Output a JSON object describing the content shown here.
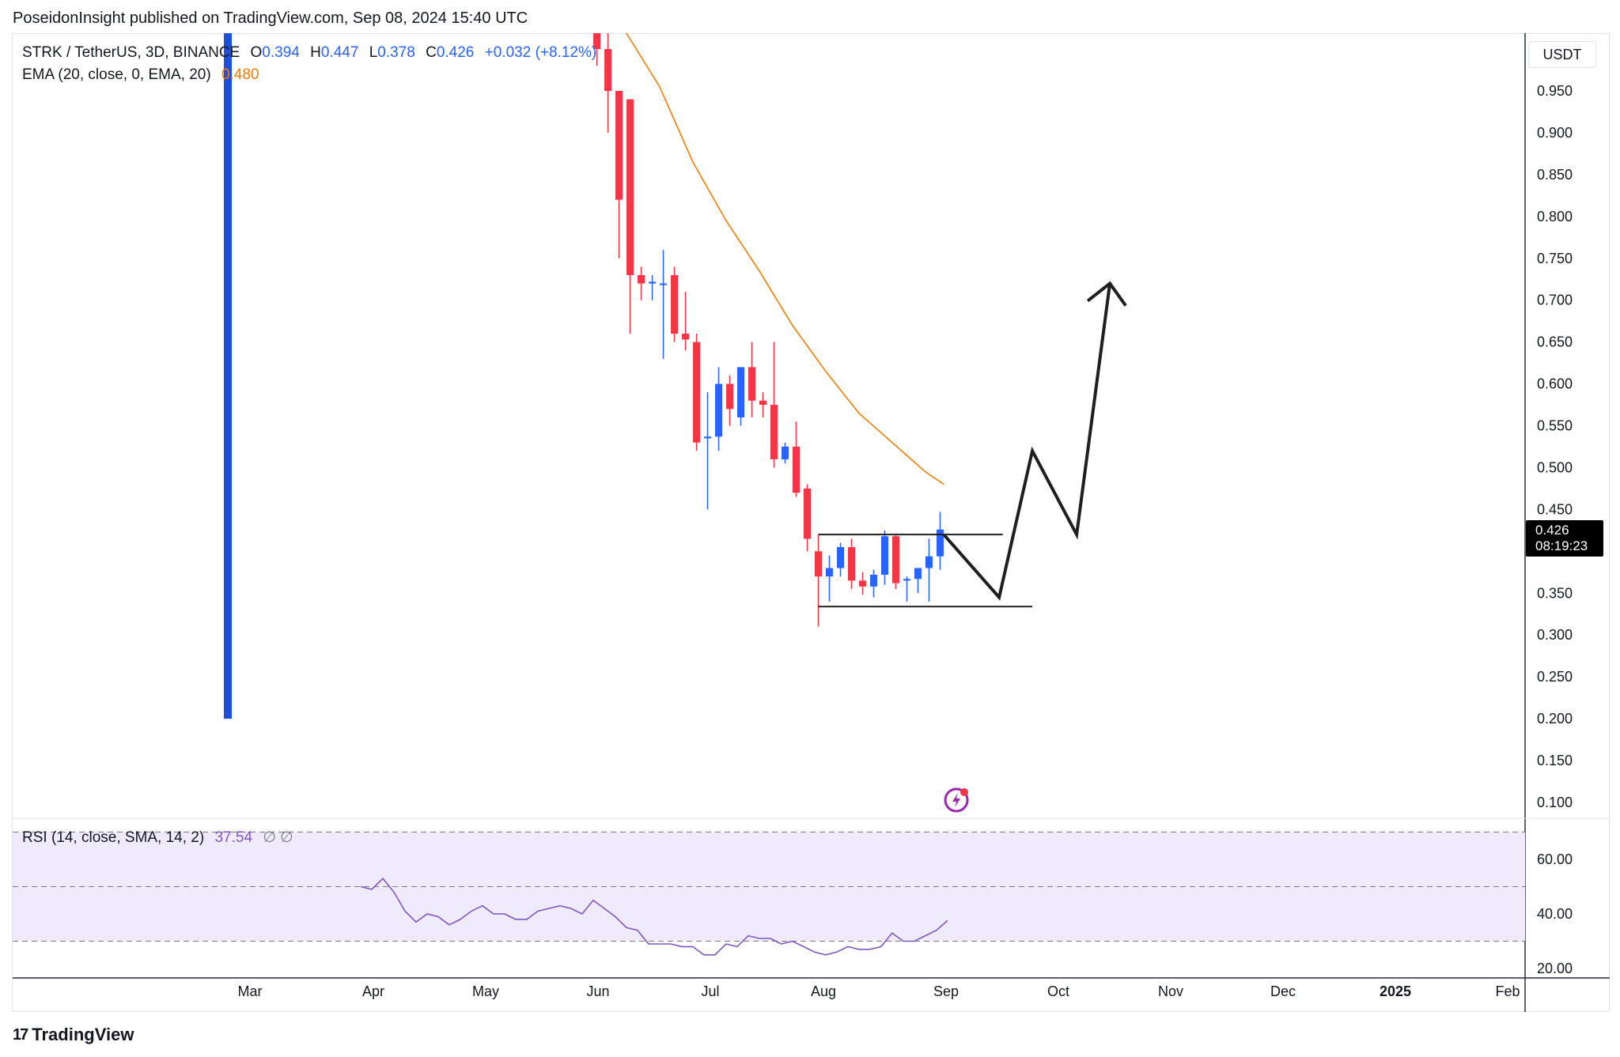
{
  "header": {
    "publisher": "PoseidonInsight published on TradingView.com, Sep 08, 2024 15:40 UTC"
  },
  "legend": {
    "symbol": "STRK / TetherUS, 3D, BINANCE",
    "o_label": "O",
    "o_value": "0.394",
    "h_label": "H",
    "h_value": "0.447",
    "l_label": "L",
    "l_value": "0.378",
    "c_label": "C",
    "c_value": "0.426",
    "change": "+0.032 (+8.12%)",
    "ema_label": "EMA (20, close, 0, EMA, 20)",
    "ema_value": "0.480",
    "rsi_label": "RSI (14, close, SMA, 14, 2)",
    "rsi_value": "37.54",
    "rsi_icons": "∅  ∅"
  },
  "axis": {
    "currency": "USDT",
    "last_price": "0.426",
    "countdown": "08:19:23"
  },
  "footer": {
    "brand": "TradingView",
    "logo_glyph": "17"
  },
  "colors": {
    "up": "#2962ff",
    "down": "#f23645",
    "ema": "#f57c00",
    "rsi": "#7e57c2",
    "rsi_band": "#f0ebfc",
    "drawing": "#1f1f1f",
    "marker": "#9c27b0"
  },
  "chart_data": [
    {
      "type": "candlestick",
      "symbol": "STRK / TetherUS",
      "interval": "3D",
      "exchange": "BINANCE",
      "y_axis": {
        "ticks": [
          0.1,
          0.15,
          0.2,
          0.25,
          0.3,
          0.35,
          0.4,
          0.45,
          0.5,
          0.55,
          0.6,
          0.65,
          0.7,
          0.75,
          0.8,
          0.85,
          0.9,
          0.95
        ],
        "ylim": [
          0.08,
          1.02
        ],
        "position": "right"
      },
      "x_axis": {
        "ticks": [
          "Mar",
          "Apr",
          "May",
          "Jun",
          "Jul",
          "Aug",
          "Sep",
          "Oct",
          "Nov",
          "Dec",
          "2025",
          "Feb"
        ]
      },
      "candles": [
        {
          "date": "2024-06-03",
          "o": 1.05,
          "h": 1.07,
          "l": 0.98,
          "c": 1.0
        },
        {
          "date": "2024-06-06",
          "o": 1.0,
          "h": 1.02,
          "l": 0.9,
          "c": 0.95
        },
        {
          "date": "2024-06-09",
          "o": 0.95,
          "h": 0.95,
          "l": 0.75,
          "c": 0.82
        },
        {
          "date": "2024-06-12",
          "o": 0.94,
          "h": 0.94,
          "l": 0.66,
          "c": 0.73
        },
        {
          "date": "2024-06-15",
          "o": 0.73,
          "h": 0.74,
          "l": 0.7,
          "c": 0.72
        },
        {
          "date": "2024-06-18",
          "o": 0.72,
          "h": 0.73,
          "l": 0.7,
          "c": 0.722
        },
        {
          "date": "2024-06-21",
          "o": 0.72,
          "h": 0.76,
          "l": 0.63,
          "c": 0.72
        },
        {
          "date": "2024-06-24",
          "o": 0.73,
          "h": 0.74,
          "l": 0.65,
          "c": 0.66
        },
        {
          "date": "2024-06-27",
          "o": 0.66,
          "h": 0.71,
          "l": 0.64,
          "c": 0.653
        },
        {
          "date": "2024-06-30",
          "o": 0.65,
          "h": 0.66,
          "l": 0.52,
          "c": 0.53
        },
        {
          "date": "2024-07-03",
          "o": 0.535,
          "h": 0.59,
          "l": 0.45,
          "c": 0.537
        },
        {
          "date": "2024-07-06",
          "o": 0.537,
          "h": 0.62,
          "l": 0.52,
          "c": 0.6
        },
        {
          "date": "2024-07-09",
          "o": 0.6,
          "h": 0.61,
          "l": 0.55,
          "c": 0.57
        },
        {
          "date": "2024-07-12",
          "o": 0.56,
          "h": 0.62,
          "l": 0.55,
          "c": 0.62
        },
        {
          "date": "2024-07-15",
          "o": 0.62,
          "h": 0.65,
          "l": 0.56,
          "c": 0.58
        },
        {
          "date": "2024-07-18",
          "o": 0.58,
          "h": 0.59,
          "l": 0.56,
          "c": 0.575
        },
        {
          "date": "2024-07-21",
          "o": 0.575,
          "h": 0.65,
          "l": 0.5,
          "c": 0.51
        },
        {
          "date": "2024-07-24",
          "o": 0.51,
          "h": 0.53,
          "l": 0.505,
          "c": 0.525
        },
        {
          "date": "2024-07-27",
          "o": 0.525,
          "h": 0.555,
          "l": 0.465,
          "c": 0.47
        },
        {
          "date": "2024-07-30",
          "o": 0.475,
          "h": 0.48,
          "l": 0.4,
          "c": 0.415
        },
        {
          "date": "2024-08-02",
          "o": 0.4,
          "h": 0.42,
          "l": 0.31,
          "c": 0.37
        },
        {
          "date": "2024-08-05",
          "o": 0.37,
          "h": 0.395,
          "l": 0.34,
          "c": 0.38
        },
        {
          "date": "2024-08-08",
          "o": 0.38,
          "h": 0.41,
          "l": 0.37,
          "c": 0.405
        },
        {
          "date": "2024-08-11",
          "o": 0.405,
          "h": 0.415,
          "l": 0.355,
          "c": 0.365
        },
        {
          "date": "2024-08-14",
          "o": 0.365,
          "h": 0.375,
          "l": 0.348,
          "c": 0.358
        },
        {
          "date": "2024-08-17",
          "o": 0.358,
          "h": 0.378,
          "l": 0.345,
          "c": 0.372
        },
        {
          "date": "2024-08-20",
          "o": 0.372,
          "h": 0.425,
          "l": 0.36,
          "c": 0.418
        },
        {
          "date": "2024-08-23",
          "o": 0.418,
          "h": 0.42,
          "l": 0.355,
          "c": 0.362
        },
        {
          "date": "2024-08-26",
          "o": 0.365,
          "h": 0.37,
          "l": 0.34,
          "c": 0.367
        },
        {
          "date": "2024-08-29",
          "o": 0.367,
          "h": 0.38,
          "l": 0.35,
          "c": 0.38
        },
        {
          "date": "2024-09-01",
          "o": 0.38,
          "h": 0.415,
          "l": 0.34,
          "c": 0.394
        },
        {
          "date": "2024-09-04",
          "o": 0.394,
          "h": 0.447,
          "l": 0.378,
          "c": 0.426
        }
      ],
      "ema": [
        {
          "date": "2024-06-11",
          "v": 1.03
        },
        {
          "date": "2024-06-20",
          "v": 0.955
        },
        {
          "date": "2024-06-29",
          "v": 0.865
        },
        {
          "date": "2024-07-08",
          "v": 0.795
        },
        {
          "date": "2024-07-17",
          "v": 0.735
        },
        {
          "date": "2024-07-26",
          "v": 0.67
        },
        {
          "date": "2024-08-04",
          "v": 0.615
        },
        {
          "date": "2024-08-13",
          "v": 0.565
        },
        {
          "date": "2024-08-22",
          "v": 0.53
        },
        {
          "date": "2024-08-31",
          "v": 0.495
        },
        {
          "date": "2024-09-05",
          "v": 0.48
        }
      ],
      "levels": [
        {
          "name": "range-top",
          "price": 0.42,
          "from": "2024-08-02",
          "to": "2024-09-21"
        },
        {
          "name": "range-bottom",
          "price": 0.334,
          "from": "2024-08-02",
          "to": "2024-09-29"
        }
      ],
      "drawing_path": [
        {
          "date": "2024-09-05",
          "price": 0.42
        },
        {
          "date": "2024-09-20",
          "price": 0.345
        },
        {
          "date": "2024-09-29",
          "price": 0.52
        },
        {
          "date": "2024-10-11",
          "price": 0.42
        },
        {
          "date": "2024-10-20",
          "price": 0.72
        }
      ],
      "arrow_head": {
        "date": "2024-10-20",
        "price": 0.72
      },
      "vertical_marker": {
        "date": "2024-02-24",
        "from": 0.2,
        "to": 1.02
      }
    },
    {
      "type": "line",
      "name": "RSI",
      "y_axis": {
        "ticks": [
          20.0,
          40.0,
          60.0
        ],
        "ylim": [
          16,
          76
        ],
        "position": "right"
      },
      "bands": {
        "upper": 70,
        "middle": 50,
        "lower": 30
      },
      "values": [
        {
          "date": "2024-03-31",
          "v": 50
        },
        {
          "date": "2024-04-03",
          "v": 49
        },
        {
          "date": "2024-04-06",
          "v": 53
        },
        {
          "date": "2024-04-09",
          "v": 48
        },
        {
          "date": "2024-04-12",
          "v": 41
        },
        {
          "date": "2024-04-15",
          "v": 37
        },
        {
          "date": "2024-04-18",
          "v": 40
        },
        {
          "date": "2024-04-21",
          "v": 39
        },
        {
          "date": "2024-04-24",
          "v": 36
        },
        {
          "date": "2024-04-27",
          "v": 38
        },
        {
          "date": "2024-04-30",
          "v": 41
        },
        {
          "date": "2024-05-03",
          "v": 43
        },
        {
          "date": "2024-05-06",
          "v": 40
        },
        {
          "date": "2024-05-09",
          "v": 40
        },
        {
          "date": "2024-05-12",
          "v": 38
        },
        {
          "date": "2024-05-15",
          "v": 38
        },
        {
          "date": "2024-05-18",
          "v": 41
        },
        {
          "date": "2024-05-21",
          "v": 42
        },
        {
          "date": "2024-05-24",
          "v": 43
        },
        {
          "date": "2024-05-27",
          "v": 42
        },
        {
          "date": "2024-05-30",
          "v": 40
        },
        {
          "date": "2024-06-02",
          "v": 45
        },
        {
          "date": "2024-06-05",
          "v": 42
        },
        {
          "date": "2024-06-08",
          "v": 39
        },
        {
          "date": "2024-06-11",
          "v": 35
        },
        {
          "date": "2024-06-14",
          "v": 34
        },
        {
          "date": "2024-06-17",
          "v": 29
        },
        {
          "date": "2024-06-20",
          "v": 29
        },
        {
          "date": "2024-06-23",
          "v": 29
        },
        {
          "date": "2024-06-26",
          "v": 28
        },
        {
          "date": "2024-06-29",
          "v": 28
        },
        {
          "date": "2024-07-02",
          "v": 25
        },
        {
          "date": "2024-07-05",
          "v": 25
        },
        {
          "date": "2024-07-08",
          "v": 29
        },
        {
          "date": "2024-07-11",
          "v": 28
        },
        {
          "date": "2024-07-14",
          "v": 32
        },
        {
          "date": "2024-07-17",
          "v": 31
        },
        {
          "date": "2024-07-20",
          "v": 31
        },
        {
          "date": "2024-07-23",
          "v": 29
        },
        {
          "date": "2024-07-26",
          "v": 30
        },
        {
          "date": "2024-07-29",
          "v": 28
        },
        {
          "date": "2024-08-01",
          "v": 26
        },
        {
          "date": "2024-08-04",
          "v": 25
        },
        {
          "date": "2024-08-07",
          "v": 26
        },
        {
          "date": "2024-08-10",
          "v": 28
        },
        {
          "date": "2024-08-13",
          "v": 27
        },
        {
          "date": "2024-08-16",
          "v": 27
        },
        {
          "date": "2024-08-19",
          "v": 28
        },
        {
          "date": "2024-08-22",
          "v": 33
        },
        {
          "date": "2024-08-25",
          "v": 30
        },
        {
          "date": "2024-08-28",
          "v": 30
        },
        {
          "date": "2024-08-31",
          "v": 32
        },
        {
          "date": "2024-09-03",
          "v": 34
        },
        {
          "date": "2024-09-06",
          "v": 37.54
        }
      ]
    }
  ]
}
